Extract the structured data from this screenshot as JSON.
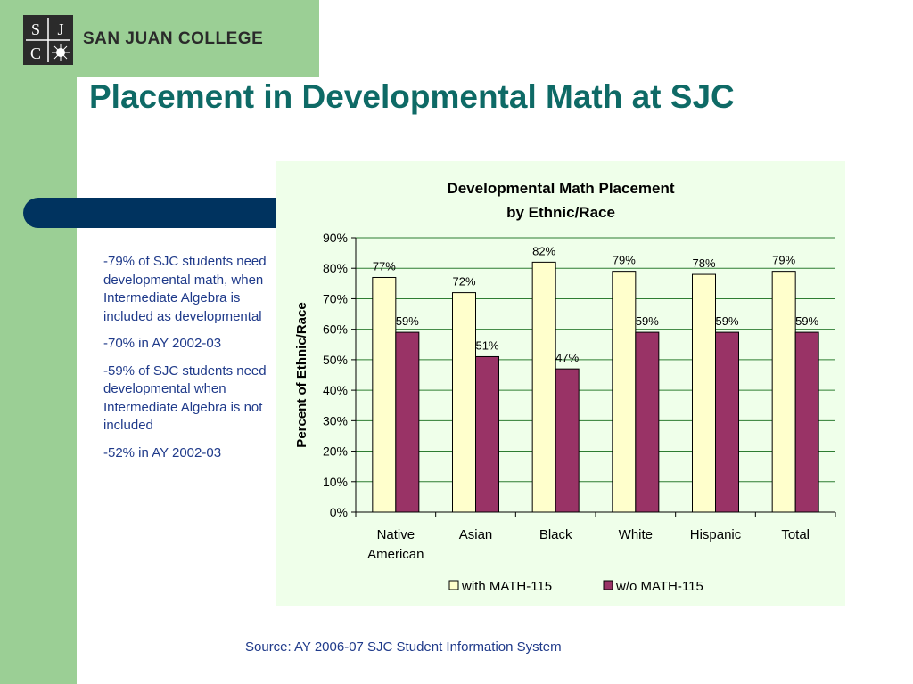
{
  "header": {
    "logo_letters": [
      "S",
      "J",
      "C"
    ],
    "college_name": "SAN JUAN COLLEGE",
    "title": "Placement in Developmental Math at SJC"
  },
  "bullets": [
    "-79% of SJC students need developmental math, when Intermediate Algebra is included as developmental",
    "-70% in AY 2002-03",
    "-59% of SJC students need developmental when Intermediate Algebra is not included",
    "-52% in AY 2002-03"
  ],
  "source": "Source: AY 2006-07 SJC Student Information System",
  "colors": {
    "sidebar_green": "#9bcf95",
    "navy": "#00335f",
    "title_teal": "#0e6a66",
    "text_blue": "#1f3a8a",
    "series_with": "#ffffcc",
    "series_without": "#993366",
    "grid": "#2e7d32"
  },
  "chart_data": {
    "type": "bar",
    "title_lines": [
      "Developmental Math Placement",
      "by Ethnic/Race"
    ],
    "xlabel": "",
    "ylabel": "Percent of Ethnic/Race",
    "categories": [
      [
        "Native",
        "American"
      ],
      [
        "Asian"
      ],
      [
        "Black"
      ],
      [
        "White"
      ],
      [
        "Hispanic"
      ],
      [
        "Total"
      ]
    ],
    "series": [
      {
        "name": "with MATH-115",
        "values": [
          77,
          72,
          82,
          79,
          78,
          79
        ],
        "labels": [
          "77%",
          "72%",
          "82%",
          "79%",
          "78%",
          "79%"
        ]
      },
      {
        "name": "w/o MATH-115",
        "values": [
          59,
          51,
          47,
          59,
          59,
          59
        ],
        "labels": [
          "59%",
          "51%",
          "47%",
          "59%",
          "59%",
          "59%"
        ]
      }
    ],
    "ylim": [
      0,
      90
    ],
    "yticks": [
      0,
      10,
      20,
      30,
      40,
      50,
      60,
      70,
      80,
      90
    ],
    "ytick_labels": [
      "0%",
      "10%",
      "20%",
      "30%",
      "40%",
      "50%",
      "60%",
      "70%",
      "80%",
      "90%"
    ],
    "grid": true,
    "legend": "bottom"
  }
}
